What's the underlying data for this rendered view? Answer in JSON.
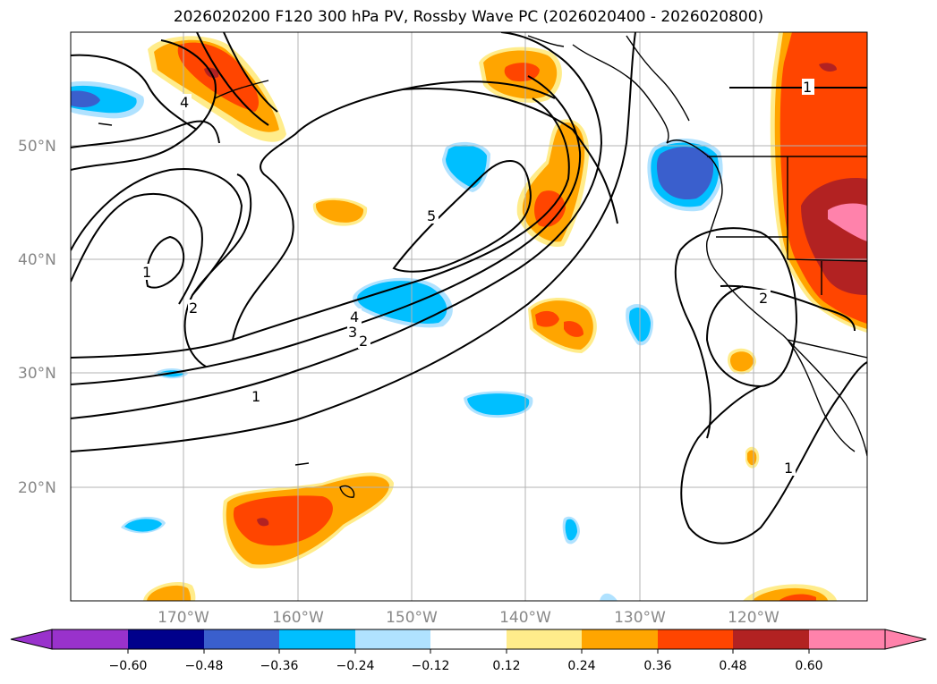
{
  "title": "2026020200 F120 300 hPa PV, Rossby Wave PC (2026020400 - 2026020800)",
  "lat_labels": [
    "50°N",
    "40°N",
    "30°N",
    "20°N"
  ],
  "lon_labels": [
    "170°W",
    "160°W",
    "150°W",
    "140°W",
    "130°W",
    "120°W"
  ],
  "colorbar": {
    "ticks": [
      "−0.60",
      "−0.48",
      "−0.36",
      "−0.24",
      "−0.12",
      "0.12",
      "0.24",
      "0.36",
      "0.48",
      "0.60"
    ],
    "colors": [
      "#9932CC",
      "#00008B",
      "#3A5FCD",
      "#00BFFF",
      "#B0E2FF",
      "#FFFFFF",
      "#FFEC8B",
      "#FFA500",
      "#FF4500",
      "#B22222",
      "#FF82AB",
      "#FF82AB"
    ],
    "min_color": "#9932CC",
    "max_color": "#FF82AB"
  },
  "contour_labels": [
    "1",
    "2",
    "3",
    "4",
    "5"
  ],
  "palette": {
    "pos1": "#FFEC8B",
    "pos2": "#FFA500",
    "pos3": "#FF4500",
    "pos4": "#B22222",
    "pos5": "#FF82AB",
    "neg1": "#B0E2FF",
    "neg2": "#00BFFF",
    "neg3": "#3A5FCD",
    "neg4": "#00008B"
  }
}
